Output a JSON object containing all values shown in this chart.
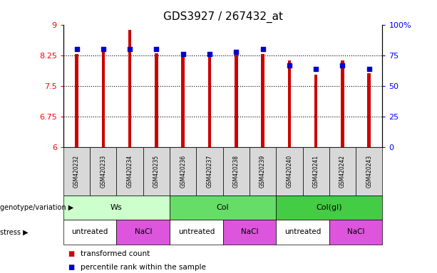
{
  "title": "GDS3927 / 267432_at",
  "samples": [
    "GSM420232",
    "GSM420233",
    "GSM420234",
    "GSM420235",
    "GSM420236",
    "GSM420237",
    "GSM420238",
    "GSM420239",
    "GSM420240",
    "GSM420241",
    "GSM420242",
    "GSM420243"
  ],
  "bar_values": [
    8.28,
    8.33,
    8.87,
    8.3,
    8.28,
    8.28,
    8.28,
    8.28,
    8.12,
    7.78,
    8.13,
    7.82
  ],
  "percentile_values": [
    80,
    80,
    80,
    80,
    76,
    76,
    78,
    80,
    67,
    64,
    67,
    64
  ],
  "bar_color": "#cc0000",
  "dot_color": "#0000cc",
  "ylim_left": [
    6,
    9
  ],
  "ylim_right": [
    0,
    100
  ],
  "yticks_left": [
    6,
    6.75,
    7.5,
    8.25,
    9
  ],
  "yticks_right": [
    0,
    25,
    50,
    75,
    100
  ],
  "ytick_labels_left": [
    "6",
    "6.75",
    "7.5",
    "8.25",
    "9"
  ],
  "ytick_labels_right": [
    "0",
    "25",
    "50",
    "75",
    "100%"
  ],
  "hlines": [
    6.75,
    7.5,
    8.25
  ],
  "genotype_groups": [
    {
      "label": "Ws",
      "start": 0,
      "end": 4,
      "color": "#ccffcc"
    },
    {
      "label": "Col",
      "start": 4,
      "end": 8,
      "color": "#66dd66"
    },
    {
      "label": "Col(gl)",
      "start": 8,
      "end": 12,
      "color": "#44cc44"
    }
  ],
  "stress_groups": [
    {
      "label": "untreated",
      "start": 0,
      "end": 2,
      "color": "#ffffff"
    },
    {
      "label": "NaCl",
      "start": 2,
      "end": 4,
      "color": "#dd55dd"
    },
    {
      "label": "untreated",
      "start": 4,
      "end": 6,
      "color": "#ffffff"
    },
    {
      "label": "NaCl",
      "start": 6,
      "end": 8,
      "color": "#dd55dd"
    },
    {
      "label": "untreated",
      "start": 8,
      "end": 10,
      "color": "#ffffff"
    },
    {
      "label": "NaCl",
      "start": 10,
      "end": 12,
      "color": "#dd55dd"
    }
  ],
  "genotype_label": "genotype/variation",
  "stress_label": "stress",
  "legend_bar_label": "transformed count",
  "legend_dot_label": "percentile rank within the sample",
  "bar_width": 0.12,
  "tick_label_fontsize": 8,
  "title_fontsize": 11,
  "background_color": "#ffffff",
  "sample_box_color": "#d8d8d8"
}
